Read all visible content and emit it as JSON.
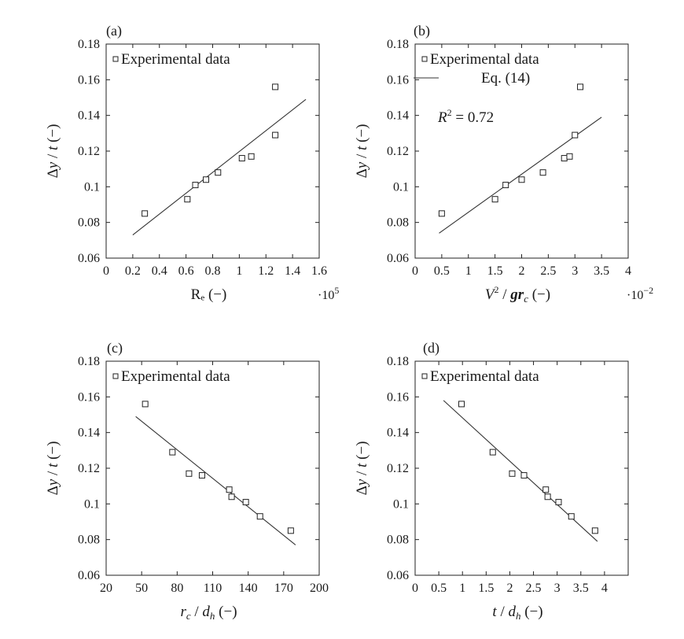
{
  "chart_data": [
    {
      "panel": "(a)",
      "type": "scatter",
      "xlim": [
        0,
        1.6
      ],
      "ylim": [
        0.06,
        0.18
      ],
      "xticks": [
        0,
        0.2,
        0.4,
        0.6,
        0.8,
        1,
        1.2,
        1.4,
        1.6
      ],
      "yticks": [
        0.06,
        0.08,
        0.1,
        0.12,
        0.14,
        0.16,
        0.18
      ],
      "xtick_labels": [
        "0",
        "0.2",
        "0.4",
        "0.6",
        "0.8",
        "1",
        "1.2",
        "1.4",
        "1.6"
      ],
      "ytick_labels": [
        "0.06",
        "0.08",
        "0.1",
        "0.12",
        "0.14",
        "0.16",
        "0.18"
      ],
      "xlabel": "Rₑ (−)",
      "ylabel": "Δy / t (−)",
      "x_multiplier": "·10",
      "x_multiplier_exp": "5",
      "legend": [
        "Experimental data"
      ],
      "legend_position": "top-left",
      "annotation": "",
      "x": [
        0.29,
        0.61,
        0.67,
        0.75,
        0.84,
        1.02,
        1.09,
        1.27,
        1.27
      ],
      "y": [
        0.085,
        0.093,
        0.101,
        0.104,
        0.108,
        0.116,
        0.117,
        0.129,
        0.156
      ],
      "fit": [
        [
          0.2,
          0.073
        ],
        [
          1.5,
          0.149
        ]
      ]
    },
    {
      "panel": "(b)",
      "type": "scatter",
      "xlim": [
        0,
        4
      ],
      "ylim": [
        0.06,
        0.18
      ],
      "xticks": [
        0,
        0.5,
        1,
        1.5,
        2,
        2.5,
        3,
        3.5,
        4
      ],
      "yticks": [
        0.06,
        0.08,
        0.1,
        0.12,
        0.14,
        0.16,
        0.18
      ],
      "xtick_labels": [
        "0",
        "0.5",
        "1",
        "1.5",
        "2",
        "2.5",
        "3",
        "3.5",
        "4"
      ],
      "ytick_labels": [
        "0.06",
        "0.08",
        "0.1",
        "0.12",
        "0.14",
        "0.16",
        "0.18"
      ],
      "xlabel": "V² / grc (−)",
      "ylabel": "Δy / t (−)",
      "x_multiplier": "·10",
      "x_multiplier_exp": "−2",
      "legend": [
        "Experimental data",
        "Eq. (14)"
      ],
      "legend_position": "top-left",
      "annotation": "R² = 0.72",
      "x": [
        0.5,
        1.5,
        1.7,
        2.0,
        2.4,
        2.8,
        2.9,
        3.0,
        3.1
      ],
      "y": [
        0.085,
        0.093,
        0.101,
        0.104,
        0.108,
        0.116,
        0.117,
        0.129,
        0.156
      ],
      "fit": [
        [
          0.45,
          0.074
        ],
        [
          3.5,
          0.139
        ]
      ]
    },
    {
      "panel": "(c)",
      "type": "scatter",
      "xlim": [
        20,
        200
      ],
      "ylim": [
        0.06,
        0.18
      ],
      "xticks": [
        20,
        50,
        80,
        110,
        140,
        170,
        200
      ],
      "yticks": [
        0.06,
        0.08,
        0.1,
        0.12,
        0.14,
        0.16,
        0.18
      ],
      "xtick_labels": [
        "20",
        "50",
        "80",
        "110",
        "140",
        "170",
        "200"
      ],
      "ytick_labels": [
        "0.06",
        "0.08",
        "0.1",
        "0.12",
        "0.14",
        "0.16",
        "0.18"
      ],
      "xlabel": "rc / dh (−)",
      "ylabel": "Δy / t (−)",
      "x_multiplier": "",
      "x_multiplier_exp": "",
      "legend": [
        "Experimental data"
      ],
      "legend_position": "top-left",
      "annotation": "",
      "x": [
        53,
        76,
        90,
        101,
        124,
        126,
        138,
        150,
        176
      ],
      "y": [
        0.156,
        0.129,
        0.117,
        0.116,
        0.108,
        0.104,
        0.101,
        0.093,
        0.085
      ],
      "fit": [
        [
          45,
          0.149
        ],
        [
          180,
          0.077
        ]
      ]
    },
    {
      "panel": "(d)",
      "type": "scatter",
      "xlim": [
        0,
        4.5
      ],
      "ylim": [
        0.06,
        0.18
      ],
      "xticks": [
        0,
        0.5,
        1,
        1.5,
        2,
        2.5,
        3,
        3.5,
        4
      ],
      "yticks": [
        0.06,
        0.08,
        0.1,
        0.12,
        0.14,
        0.16,
        0.18
      ],
      "xtick_labels": [
        "0",
        "0.5",
        "1",
        "1.5",
        "2",
        "2.5",
        "3",
        "3.5",
        "4"
      ],
      "ytick_labels": [
        "0.06",
        "0.08",
        "0.1",
        "0.12",
        "0.14",
        "0.16",
        "0.18"
      ],
      "xlabel": "t / dh (−)",
      "ylabel": "Δy / t (−)",
      "x_multiplier": "",
      "x_multiplier_exp": "",
      "legend": [
        "Experimental data"
      ],
      "legend_position": "top-left",
      "annotation": "",
      "x": [
        0.98,
        1.64,
        2.05,
        2.3,
        2.76,
        2.8,
        3.03,
        3.3,
        3.8
      ],
      "y": [
        0.156,
        0.129,
        0.117,
        0.116,
        0.108,
        0.104,
        0.101,
        0.093,
        0.085
      ],
      "fit": [
        [
          0.6,
          0.158
        ],
        [
          3.85,
          0.079
        ]
      ]
    }
  ]
}
